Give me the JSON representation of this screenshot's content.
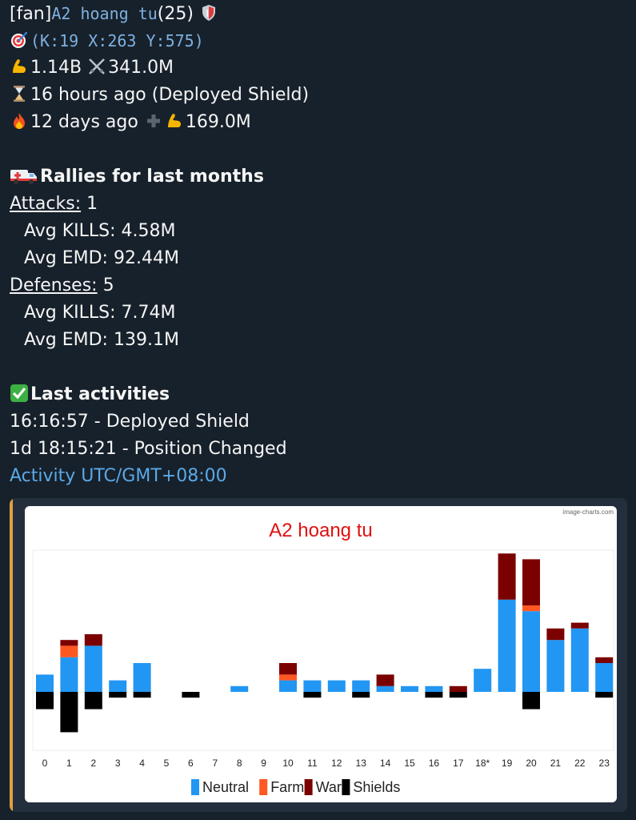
{
  "profile": {
    "tag": "[fan]",
    "name": "A2 hoang tu",
    "level": "(25)",
    "coords": "(K:19 X:263 Y:575)",
    "power": "1.14B",
    "kills": "341.0M",
    "last_seen": "16 hours ago (Deployed Shield)",
    "burn_time": "12 days ago",
    "burn_power": "169.0M"
  },
  "rallies": {
    "title": "Rallies for last months",
    "attacks_label": "Attacks:",
    "attacks_count": "1",
    "attacks_kills": "Avg KILLS: 4.58M",
    "attacks_emd": "Avg EMD: 92.44M",
    "defenses_label": "Defenses:",
    "defenses_count": "5",
    "defenses_kills": "Avg KILLS: 7.74M",
    "defenses_emd": "Avg EMD: 139.1M"
  },
  "activities": {
    "title": "Last activities",
    "items": [
      "16:16:57 - Deployed Shield",
      "1d 18:15:21 - Position Changed"
    ],
    "link": "Activity UTC/GMT+08:00"
  },
  "icons": {
    "muscle": "flexed-biceps-icon",
    "swords": "crossed-swords-icon",
    "hourglass": "hourglass-icon",
    "fire": "fire-icon",
    "plus": "plus-icon",
    "ambulance": "ambulance-icon",
    "check": "check-mark-icon",
    "target": "target-icon",
    "shield": "shield-icon"
  },
  "colors": {
    "background": "#17212b",
    "link": "#5aa9e8",
    "neutral": "#2196f3",
    "farm": "#ff5722",
    "war": "#7b0000",
    "shields": "#000000",
    "title": "#e01010"
  },
  "chart_data": {
    "type": "bar",
    "title": "A2 hoang tu",
    "watermark": "image-charts.com",
    "categories": [
      "0",
      "1",
      "2",
      "3",
      "4",
      "5",
      "6",
      "7",
      "8",
      "9",
      "10",
      "11",
      "12",
      "13",
      "14",
      "15",
      "16",
      "17",
      "18*",
      "19",
      "20",
      "21",
      "22",
      "23"
    ],
    "series": [
      {
        "name": "Neutral",
        "values": [
          3,
          6,
          8,
          2,
          5,
          0,
          0,
          0,
          1,
          0,
          2,
          2,
          2,
          2,
          1,
          1,
          1,
          0,
          4,
          16,
          14,
          9,
          11,
          5
        ]
      },
      {
        "name": "Farm",
        "values": [
          0,
          2,
          0,
          0,
          0,
          0,
          0,
          0,
          0,
          0,
          1,
          0,
          0,
          0,
          0,
          0,
          0,
          0,
          0,
          0,
          1,
          0,
          0,
          0
        ]
      },
      {
        "name": "War",
        "values": [
          0,
          1,
          2,
          0,
          0,
          0,
          0,
          0,
          0,
          0,
          2,
          0,
          0,
          0,
          2,
          0,
          0,
          1,
          0,
          8,
          8,
          2,
          1,
          1
        ]
      },
      {
        "name": "Shields",
        "values": [
          3,
          7,
          3,
          1,
          1,
          0,
          1,
          0,
          0,
          0,
          0,
          1,
          0,
          1,
          0,
          0,
          1,
          1,
          0,
          0,
          3,
          0,
          0,
          1
        ]
      }
    ],
    "shields_direction": "below axis",
    "legend": "bottom"
  }
}
